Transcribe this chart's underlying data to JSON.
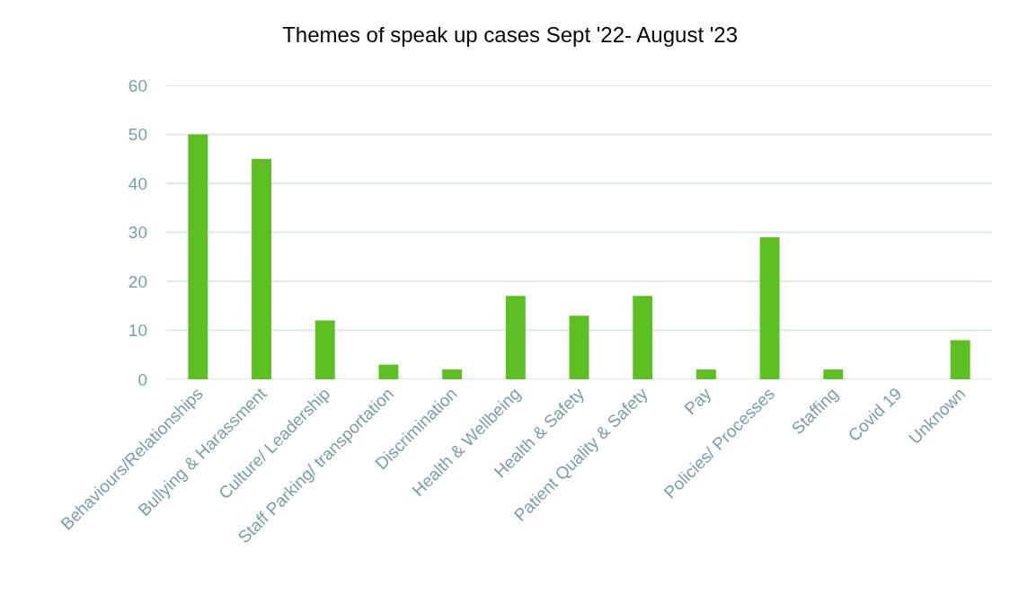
{
  "chart_data": {
    "type": "bar",
    "title": "Themes of speak up cases Sept '22- August '23",
    "categories": [
      "Behaviours/Relationships",
      "Bullying & Harassment",
      "Culture/ Leadership",
      "Staff Parking/ transportation",
      "Discrimination",
      "Health & Wellbeing",
      "Health & Safety",
      "Patient Quality & Safety",
      "Pay",
      "Policies/ Processes",
      "Staffing",
      "Covid 19",
      "Unknown"
    ],
    "values": [
      50,
      45,
      12,
      3,
      2,
      17,
      13,
      17,
      2,
      29,
      2,
      0,
      8
    ],
    "color": "#5cbf22",
    "ylim": [
      0,
      60
    ],
    "yticks": [
      0,
      10,
      20,
      30,
      40,
      50,
      60
    ],
    "grid": "y"
  }
}
